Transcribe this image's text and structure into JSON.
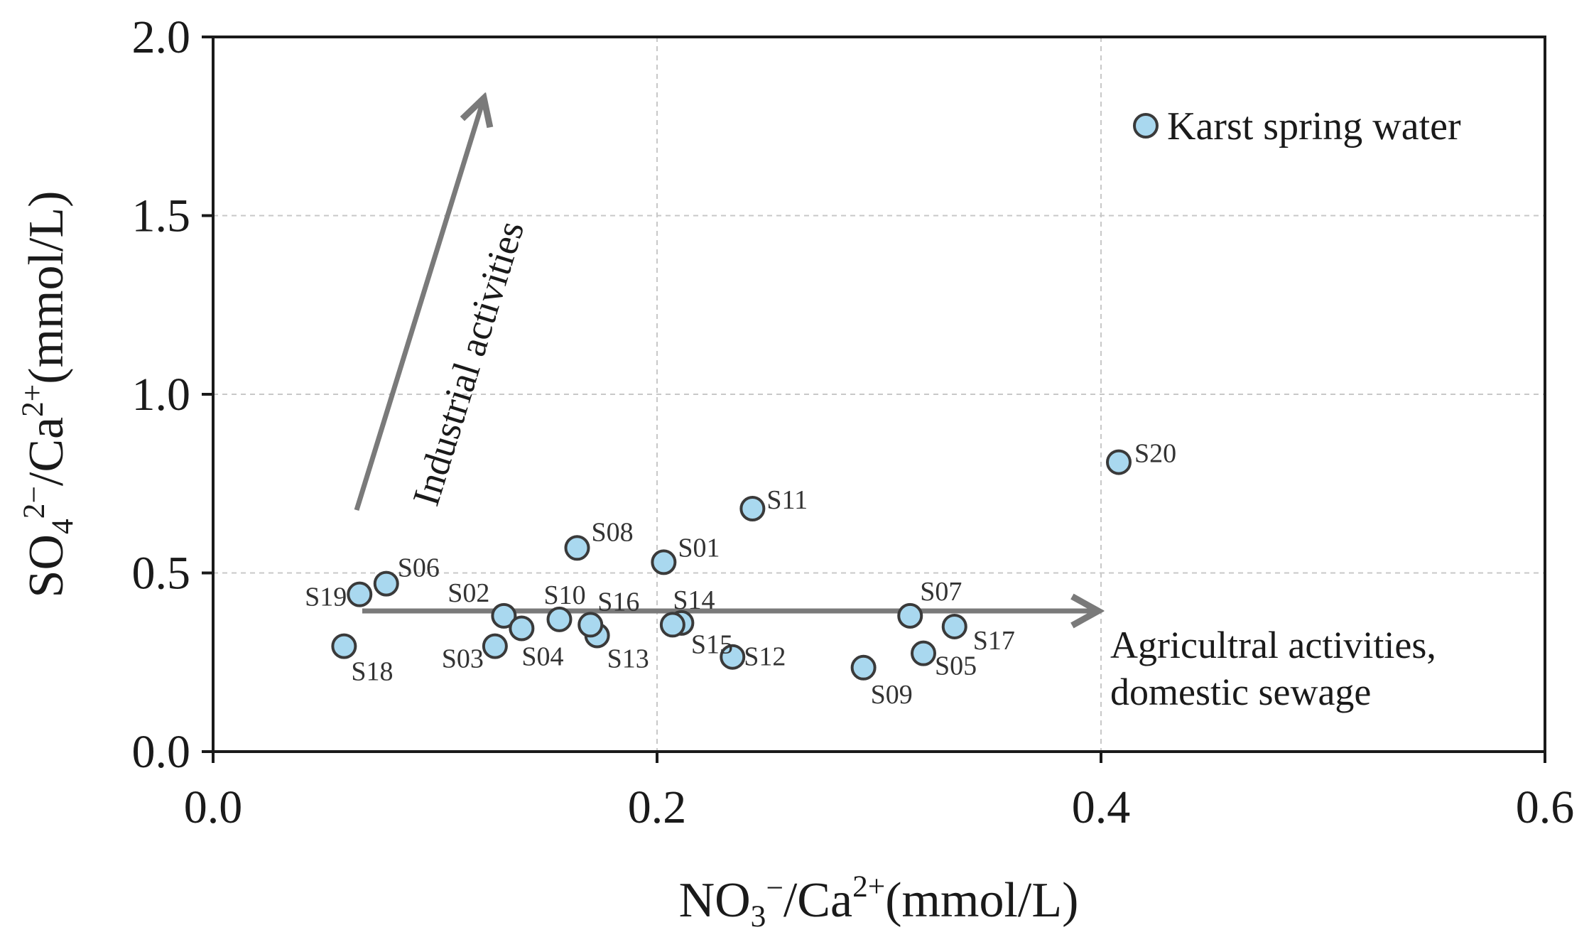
{
  "chart_data": {
    "type": "scatter",
    "title": "",
    "xlabel": {
      "base": "NO",
      "sub": "3",
      "sup1": "−",
      "mid": "/Ca",
      "sup2": "2+",
      "tail": "(mmol/L)"
    },
    "ylabel": {
      "base": "SO",
      "sub": "4",
      "sup1": "2−",
      "mid": "/Ca",
      "sup2": "2+",
      "tail": "(mmol/L)"
    },
    "xlim": [
      0,
      0.6
    ],
    "ylim": [
      0,
      2.0
    ],
    "x_ticks": [
      0.0,
      0.2,
      0.4,
      0.6
    ],
    "y_ticks": [
      0.0,
      0.5,
      1.0,
      1.5,
      2.0
    ],
    "x_tick_labels": [
      "0.0",
      "0.2",
      "0.4",
      "0.6"
    ],
    "y_tick_labels": [
      "0.0",
      "0.5",
      "1.0",
      "1.5",
      "2.0"
    ],
    "grid": true,
    "legend": {
      "label": "Karst spring water",
      "position": "top-right"
    },
    "series": [
      {
        "name": "Karst spring water",
        "marker_color": "#a9d8ef",
        "edge_color": "#3a3a3a",
        "points": [
          {
            "label": "S01",
            "x": 0.203,
            "y": 0.53
          },
          {
            "label": "S02",
            "x": 0.131,
            "y": 0.38
          },
          {
            "label": "S03",
            "x": 0.127,
            "y": 0.295
          },
          {
            "label": "S04",
            "x": 0.139,
            "y": 0.345
          },
          {
            "label": "S05",
            "x": 0.32,
            "y": 0.275
          },
          {
            "label": "S06",
            "x": 0.078,
            "y": 0.47
          },
          {
            "label": "S07",
            "x": 0.314,
            "y": 0.38
          },
          {
            "label": "S08",
            "x": 0.164,
            "y": 0.57
          },
          {
            "label": "S09",
            "x": 0.293,
            "y": 0.235
          },
          {
            "label": "S10",
            "x": 0.156,
            "y": 0.37
          },
          {
            "label": "S11",
            "x": 0.243,
            "y": 0.68
          },
          {
            "label": "S12",
            "x": 0.234,
            "y": 0.265
          },
          {
            "label": "S13",
            "x": 0.173,
            "y": 0.325
          },
          {
            "label": "S14",
            "x": 0.211,
            "y": 0.36
          },
          {
            "label": "S15",
            "x": 0.207,
            "y": 0.355
          },
          {
            "label": "S16",
            "x": 0.17,
            "y": 0.355
          },
          {
            "label": "S17",
            "x": 0.334,
            "y": 0.35
          },
          {
            "label": "S18",
            "x": 0.059,
            "y": 0.295
          },
          {
            "label": "S19",
            "x": 0.066,
            "y": 0.44
          },
          {
            "label": "S20",
            "x": 0.408,
            "y": 0.81
          }
        ]
      }
    ],
    "annotations": [
      {
        "text": "Industrial activities"
      },
      {
        "text": "Agricultral activities,"
      },
      {
        "text": "domestic sewage"
      }
    ],
    "colors": {
      "arrow": "#7a7a7a",
      "axis": "#1a1a1a",
      "grid": "#c8c8c8"
    }
  }
}
